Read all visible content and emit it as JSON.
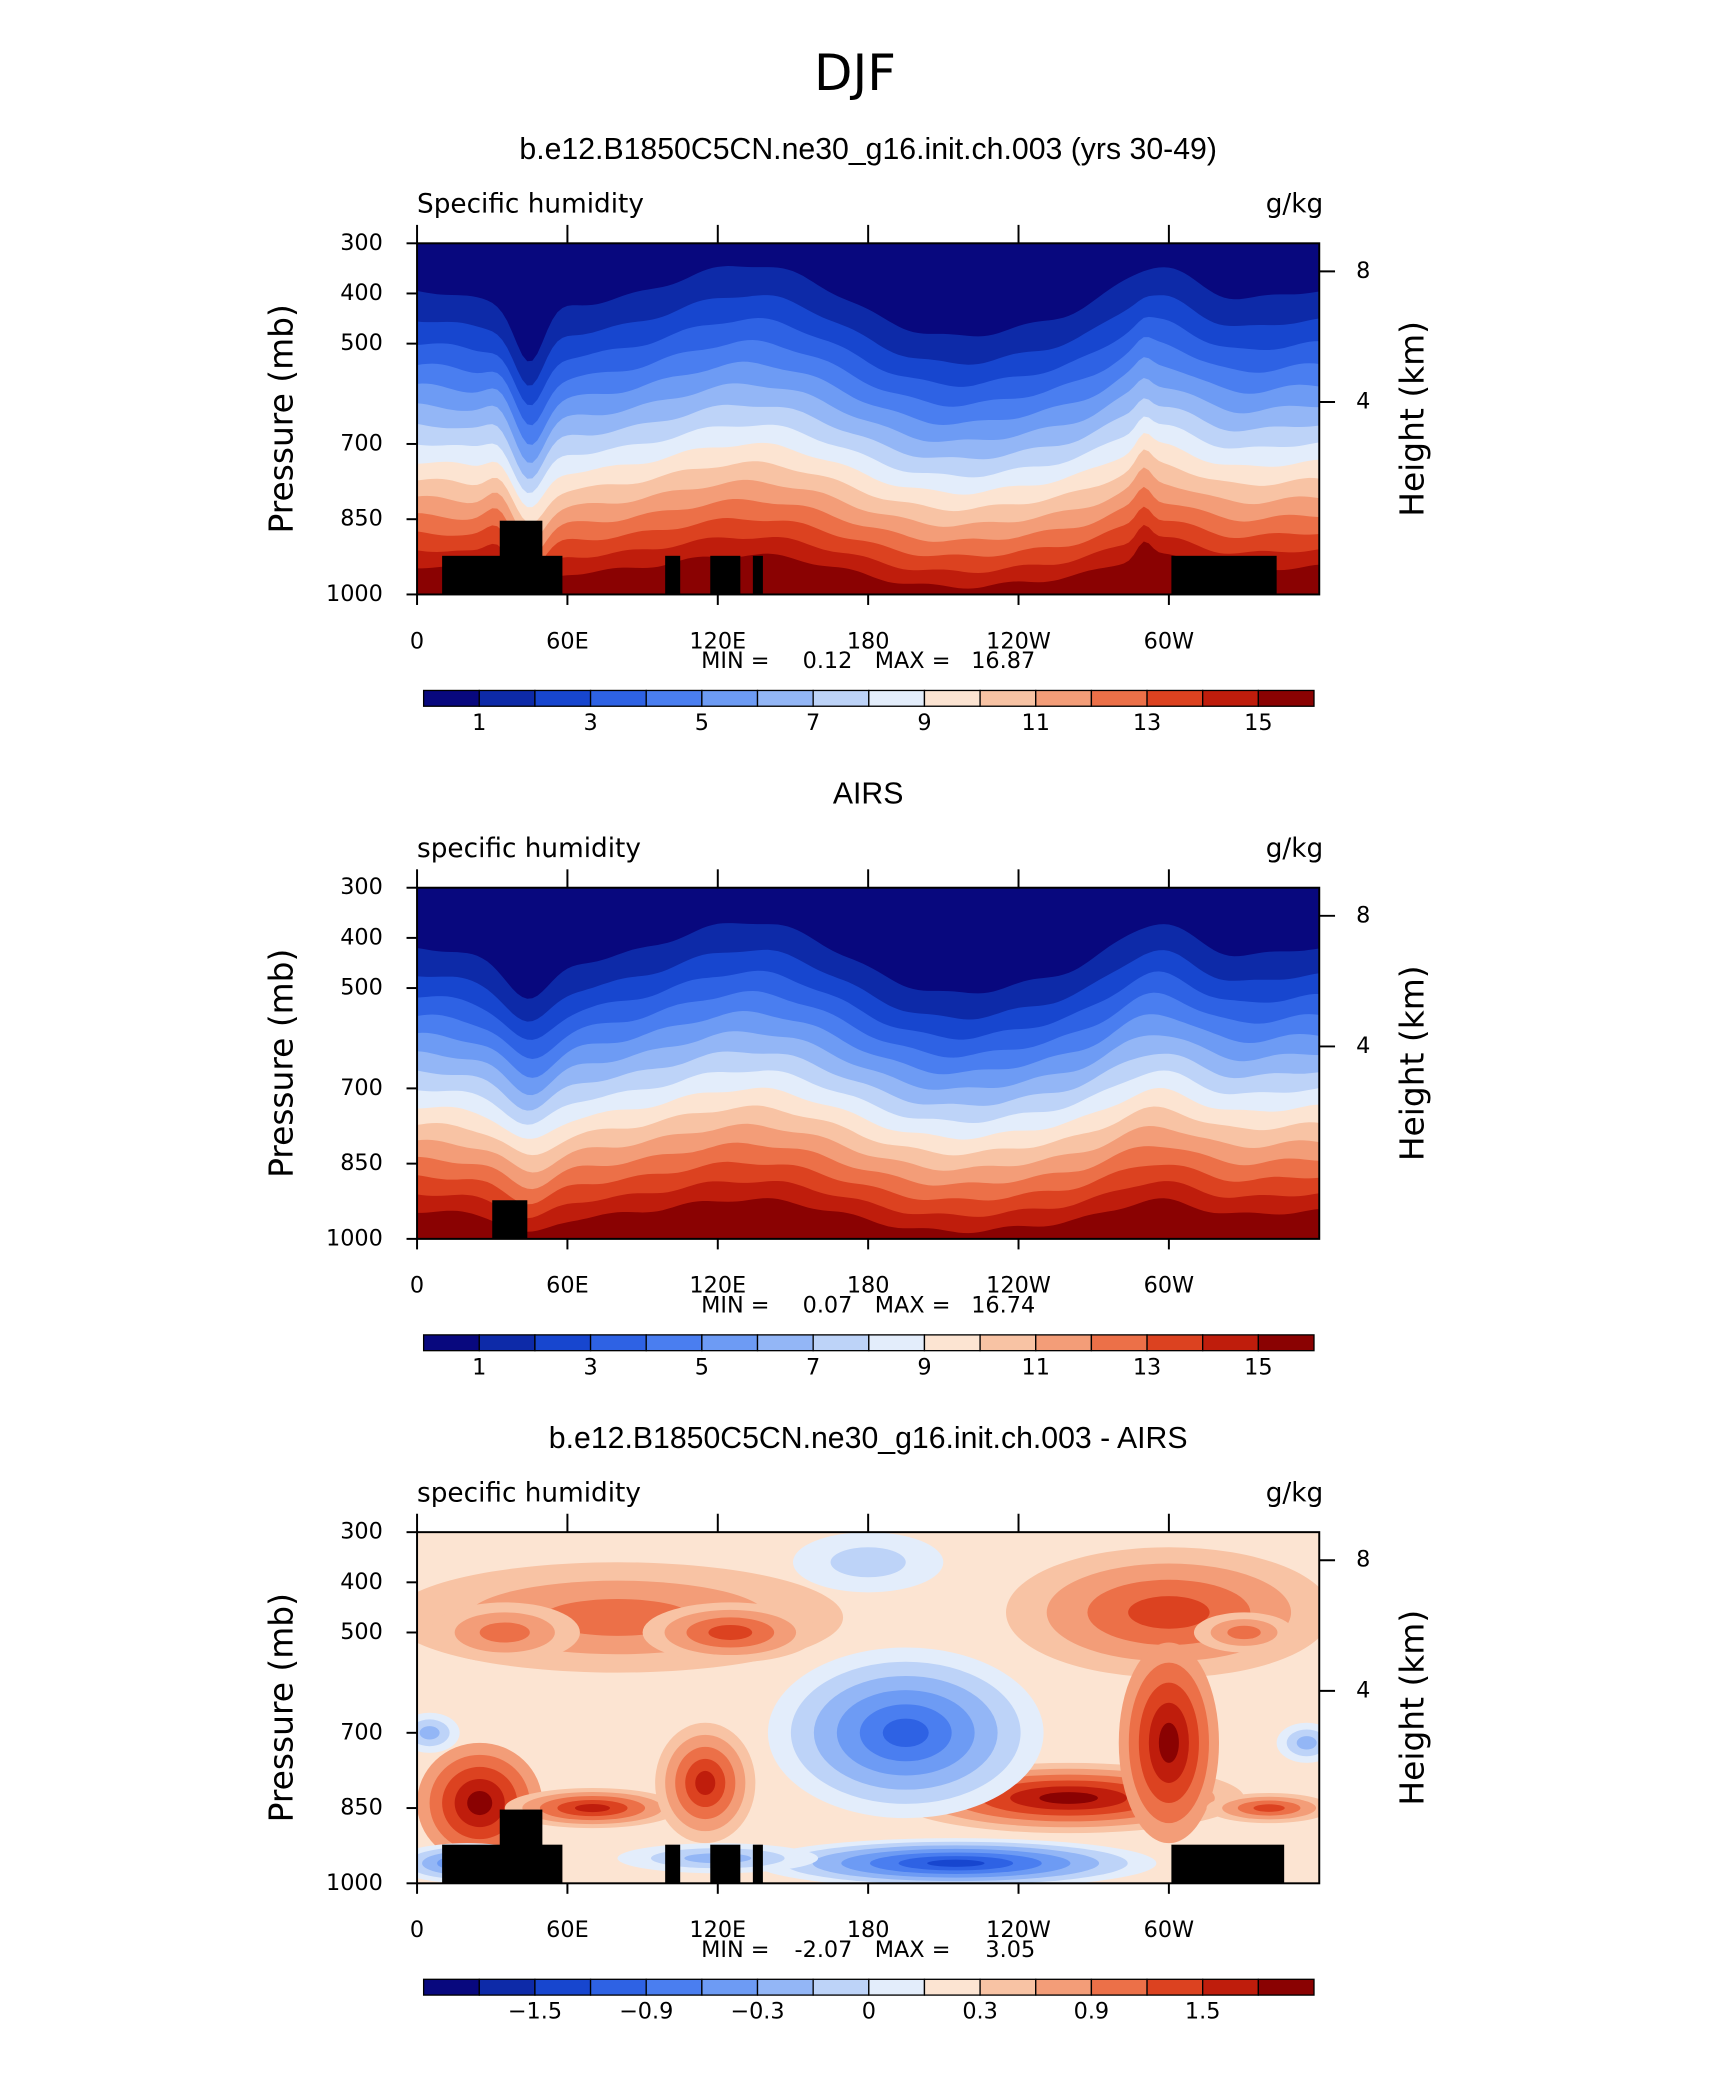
{
  "title": "DJF",
  "chart_data": [
    {
      "type": "contour",
      "title": "b.e12.B1850C5CN.ne30_g16.init.ch.003 (yrs 30-49)",
      "left_string": "Specific humidity",
      "right_string": "g/kg",
      "ylabel": "Pressure (mb)",
      "y2label": "Height (km)",
      "xlim": [
        0,
        360
      ],
      "xticks": [
        0,
        {
          "value": 60,
          "label": "60E"
        },
        {
          "value": 120,
          "label": "120E"
        },
        180,
        {
          "value": 240,
          "label": "120W"
        },
        {
          "value": 300,
          "label": "60W"
        }
      ],
      "ylim": [
        1000,
        300
      ],
      "yticks": [
        300,
        400,
        500,
        700,
        850,
        1000
      ],
      "y2ticks": [
        4,
        8
      ],
      "min_label": "MIN =",
      "min": 0.12,
      "max_label": "MAX =",
      "max": 16.87,
      "levels": [
        1,
        2,
        3,
        4,
        5,
        6,
        7,
        8,
        9,
        10,
        11,
        12,
        13,
        14,
        15
      ],
      "colorbar_ticks": [
        1,
        3,
        5,
        7,
        9,
        11,
        13,
        15
      ],
      "colors": [
        "#08087e",
        "#0d2aa8",
        "#1746cf",
        "#2e62e4",
        "#4a7ef0",
        "#6d9bf4",
        "#93b6f6",
        "#bdd3f8",
        "#e3edfb",
        "#fce4d2",
        "#f8c3a4",
        "#f39d78",
        "#ec7048",
        "#dc4220",
        "#bf1d0c",
        "#8a0202"
      ]
    },
    {
      "type": "contour",
      "title": "AIRS",
      "left_string": "specific humidity",
      "right_string": "g/kg",
      "ylabel": "Pressure (mb)",
      "y2label": "Height (km)",
      "xlim": [
        0,
        360
      ],
      "xticks": [
        0,
        {
          "value": 60,
          "label": "60E"
        },
        {
          "value": 120,
          "label": "120E"
        },
        180,
        {
          "value": 240,
          "label": "120W"
        },
        {
          "value": 300,
          "label": "60W"
        }
      ],
      "ylim": [
        1000,
        300
      ],
      "yticks": [
        300,
        400,
        500,
        700,
        850,
        1000
      ],
      "y2ticks": [
        4,
        8
      ],
      "min_label": "MIN =",
      "min": 0.07,
      "max_label": "MAX =",
      "max": 16.74,
      "levels": [
        1,
        2,
        3,
        4,
        5,
        6,
        7,
        8,
        9,
        10,
        11,
        12,
        13,
        14,
        15
      ],
      "colorbar_ticks": [
        1,
        3,
        5,
        7,
        9,
        11,
        13,
        15
      ],
      "colors": [
        "#08087e",
        "#0d2aa8",
        "#1746cf",
        "#2e62e4",
        "#4a7ef0",
        "#6d9bf4",
        "#93b6f6",
        "#bdd3f8",
        "#e3edfb",
        "#fce4d2",
        "#f8c3a4",
        "#f39d78",
        "#ec7048",
        "#dc4220",
        "#bf1d0c",
        "#8a0202"
      ]
    },
    {
      "type": "contour-diff",
      "title": "b.e12.B1850C5CN.ne30_g16.init.ch.003 - AIRS",
      "left_string": "specific humidity",
      "right_string": "g/kg",
      "ylabel": "Pressure (mb)",
      "y2label": "Height (km)",
      "xlim": [
        0,
        360
      ],
      "xticks": [
        0,
        {
          "value": 60,
          "label": "60E"
        },
        {
          "value": 120,
          "label": "120E"
        },
        180,
        {
          "value": 240,
          "label": "120W"
        },
        {
          "value": 300,
          "label": "60W"
        }
      ],
      "ylim": [
        1000,
        300
      ],
      "yticks": [
        300,
        400,
        500,
        700,
        850,
        1000
      ],
      "y2ticks": [
        4,
        8
      ],
      "min_label": "MIN =",
      "min": -2.07,
      "max_label": "MAX =",
      "max": 3.05,
      "levels": [
        -1.8,
        -1.5,
        -1.2,
        -0.9,
        -0.6,
        -0.3,
        -0.1,
        0,
        0.1,
        0.3,
        0.6,
        0.9,
        1.2,
        1.5,
        1.8
      ],
      "colorbar_ticks": [
        {
          "value": -1.5,
          "label": "−1.5"
        },
        {
          "value": -0.9,
          "label": "−0.9"
        },
        {
          "value": -0.3,
          "label": "−0.3"
        },
        0,
        0.3,
        0.9,
        1.5
      ],
      "colors": [
        "#08087e",
        "#0d2aa8",
        "#1746cf",
        "#2e62e4",
        "#4a7ef0",
        "#6d9bf4",
        "#93b6f6",
        "#bdd3f8",
        "#e3edfb",
        "#fce4d2",
        "#f8c3a4",
        "#f39d78",
        "#ec7048",
        "#dc4220",
        "#bf1d0c",
        "#8a0202"
      ]
    }
  ]
}
